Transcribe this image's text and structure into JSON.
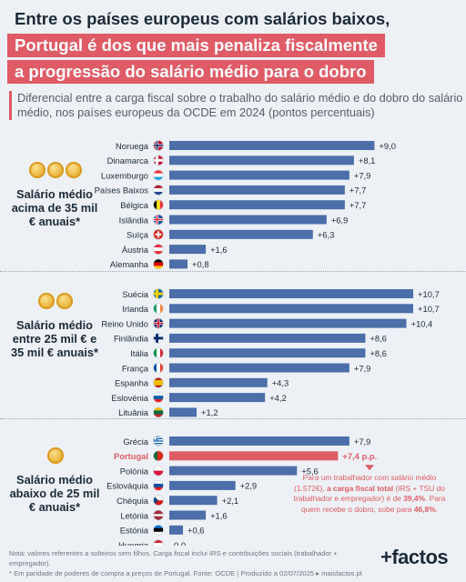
{
  "title": {
    "line1": "Entre os países europeus com salários baixos,",
    "line2": "Portugal é dos que mais penaliza fiscalmente",
    "line3": "a progressão do salário médio para o dobro"
  },
  "subtitle": "Diferencial entre a carga fiscal sobre o trabalho do salário médio e do dobro do salário médio, nos países europeus da OCDE em 2024 (pontos percentuais)",
  "colors": {
    "bar": "#4c6ea9",
    "highlight": "#df5b66",
    "text": "#1c2a38"
  },
  "chart_data": {
    "type": "bar",
    "orientation": "horizontal",
    "unit": "pontos percentuais",
    "value_range": [
      0,
      10.7
    ],
    "groups": [
      {
        "label": "Salário médio acima de 35 mil € anuais*",
        "coins": 3,
        "categories": [
          "Noruega",
          "Dinamarca",
          "Luxemburgo",
          "Países Baixos",
          "Bélgica",
          "Islândia",
          "Suíça",
          "Áustria",
          "Alemanha"
        ],
        "values": [
          9.0,
          8.1,
          7.9,
          7.7,
          7.7,
          6.9,
          6.3,
          1.6,
          0.8
        ],
        "labels": [
          "+9,0",
          "+8,1",
          "+7,9",
          "+7,7",
          "+7,7",
          "+6,9",
          "+6,3",
          "+1,6",
          "+0,8"
        ],
        "flags": [
          "flag-norway",
          "flag-denmark",
          "flag-luxembourg",
          "flag-netherlands",
          "flag-belgium",
          "flag-iceland",
          "flag-switzerland",
          "flag-austria",
          "flag-germany"
        ]
      },
      {
        "label": "Salário médio entre 25 mil € e 35 mil € anuais*",
        "coins": 2,
        "categories": [
          "Suécia",
          "Irlanda",
          "Reino Unido",
          "Finlândia",
          "Itália",
          "França",
          "Espanha",
          "Eslovénia",
          "Lituânia"
        ],
        "values": [
          10.7,
          10.7,
          10.4,
          8.6,
          8.6,
          7.9,
          4.3,
          4.2,
          1.2
        ],
        "labels": [
          "+10,7",
          "+10,7",
          "+10,4",
          "+8,6",
          "+8,6",
          "+7,9",
          "+4,3",
          "+4,2",
          "+1,2"
        ],
        "flags": [
          "flag-sweden",
          "flag-ireland",
          "flag-uk",
          "flag-finland",
          "flag-italy",
          "flag-france",
          "flag-spain",
          "flag-slovenia",
          "flag-lithuania"
        ]
      },
      {
        "label": "Salário médio abaixo de 25 mil € anuais*",
        "coins": 1,
        "categories": [
          "Grécia",
          "Portugal",
          "Polónia",
          "Eslováquia",
          "Chéquia",
          "Letónia",
          "Estónia",
          "Hungria"
        ],
        "values": [
          7.9,
          7.4,
          5.6,
          2.9,
          2.1,
          1.6,
          0.6,
          0.0
        ],
        "labels": [
          "+7,9",
          "+7,4 p.p.",
          "+5,6",
          "+2,9",
          "+2,1",
          "+1,6",
          "+0,6",
          "0,0"
        ],
        "highlight": "Portugal",
        "flags": [
          "flag-greece",
          "flag-portugal",
          "flag-poland",
          "flag-slovakia",
          "flag-czechia",
          "flag-latvia",
          "flag-estonia",
          "flag-hungary"
        ]
      }
    ]
  },
  "annotation": {
    "part1": "Para um trabalhador com salário médio (1.572€), ",
    "bold1": "a carga fiscal total",
    "part2": " (IRS + TSU do trabalhador e empregador) é de ",
    "bold2": "39,4%",
    "part3": ". Para quem recebe o dobro, sobe para ",
    "bold3": "46,8%",
    "part4": "."
  },
  "footnote": {
    "line1": "Nota: valores referentes a solteiros sem filhos. Carga fiscal inclui IRS e contribuições sociais (trabalhador + empregador).",
    "line2": "* Em paridade de poderes de compra a preços de Portugal. Fonte: OCDE | Produzido a 02/07/2025 ▸ maisfactos.pt"
  },
  "brand": "+factos"
}
